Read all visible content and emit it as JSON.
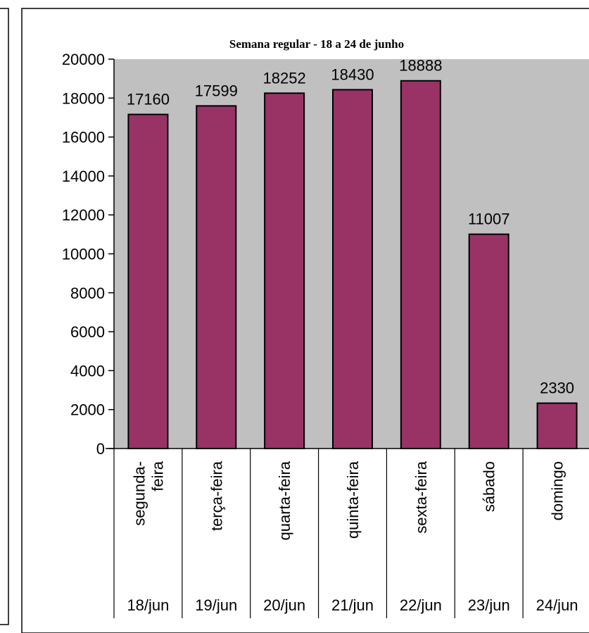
{
  "chart_data": {
    "type": "bar",
    "title": "Semana regular - 18 a 24 de junho",
    "xlabel": "",
    "ylabel": "",
    "ylim": [
      0,
      20000
    ],
    "yticks": [
      "0",
      "2000",
      "4000",
      "6000",
      "8000",
      "10000",
      "12000",
      "14000",
      "16000",
      "18000",
      "20000"
    ],
    "categories": [
      {
        "day": [
          "segunda-",
          "feira"
        ],
        "date": "18/jun"
      },
      {
        "day": [
          "terça-feira"
        ],
        "date": "19/jun"
      },
      {
        "day": [
          "quarta-feira"
        ],
        "date": "20/jun"
      },
      {
        "day": [
          "quinta-feira"
        ],
        "date": "21/jun"
      },
      {
        "day": [
          "sexta-feira"
        ],
        "date": "22/jun"
      },
      {
        "day": [
          "sábado"
        ],
        "date": "23/jun"
      },
      {
        "day": [
          "domingo"
        ],
        "date": "24/jun"
      }
    ],
    "values": [
      17160,
      17599,
      18252,
      18430,
      18888,
      11007,
      2330
    ],
    "data_labels": [
      "17160",
      "17599",
      "18252",
      "18430",
      "18888",
      "11007",
      "2330"
    ],
    "grid": false,
    "legend": "none",
    "colors": {
      "bar": "#993366",
      "plot_background": "#c0c0c0",
      "border": "#000000"
    }
  }
}
